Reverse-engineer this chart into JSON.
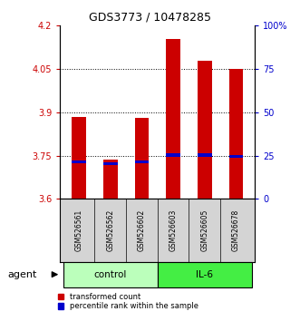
{
  "title": "GDS3773 / 10478285",
  "samples": [
    "GSM526561",
    "GSM526562",
    "GSM526602",
    "GSM526603",
    "GSM526605",
    "GSM526678"
  ],
  "red_values": [
    3.885,
    3.735,
    3.88,
    4.155,
    4.08,
    4.05
  ],
  "blue_values": [
    3.728,
    3.722,
    3.728,
    3.752,
    3.752,
    3.748
  ],
  "y_min": 3.6,
  "y_max": 4.2,
  "yticks_red": [
    3.6,
    3.75,
    3.9,
    4.05,
    4.2
  ],
  "yticks_blue": [
    0,
    25,
    50,
    75,
    100
  ],
  "grid_lines": [
    3.75,
    3.9,
    4.05
  ],
  "bar_width": 0.45,
  "bar_color_red": "#cc0000",
  "bar_color_blue": "#0000cc",
  "base_value": 3.6,
  "control_color": "#bbffbb",
  "il6_color": "#44ee44",
  "label_color_red": "#cc0000",
  "label_color_blue": "#0000cc",
  "legend_red": "transformed count",
  "legend_blue": "percentile rank within the sample",
  "title_fontsize": 9,
  "tick_fontsize": 7,
  "sample_fontsize": 5.5,
  "group_fontsize": 7.5,
  "legend_fontsize": 6,
  "agent_fontsize": 8
}
